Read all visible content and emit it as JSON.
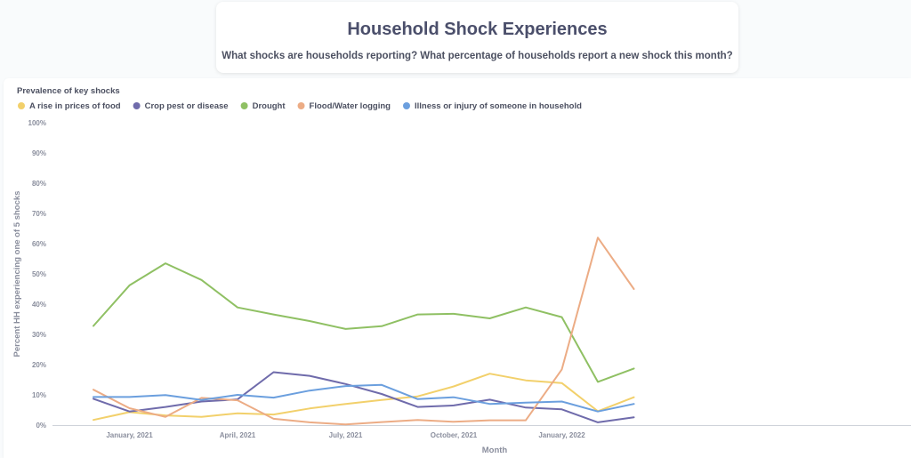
{
  "header": {
    "title": "Household Shock Experiences",
    "subtitle": "What shocks are households reporting? What percentage of households report a new shock this month?"
  },
  "chart_data": {
    "type": "line",
    "title": "Prevalence of key shocks",
    "xlabel": "Month",
    "ylabel": "Percent HH experiencing one of 5 shocks",
    "ylim": [
      0,
      100
    ],
    "y_ticks": [
      "0%",
      "10%",
      "20%",
      "30%",
      "40%",
      "50%",
      "60%",
      "70%",
      "80%",
      "90%",
      "100%"
    ],
    "x_ticks": [
      {
        "label": "January, 2021",
        "index": 1
      },
      {
        "label": "April, 2021",
        "index": 4
      },
      {
        "label": "July, 2021",
        "index": 7
      },
      {
        "label": "October, 2021",
        "index": 10
      },
      {
        "label": "January, 2022",
        "index": 13
      }
    ],
    "x": [
      "2020-12",
      "2021-01",
      "2021-02",
      "2021-03",
      "2021-04",
      "2021-05",
      "2021-06",
      "2021-07",
      "2021-08",
      "2021-09",
      "2021-10",
      "2021-11",
      "2021-12",
      "2022-01",
      "2022-02",
      "2022-03"
    ],
    "legend_position": "top-left",
    "grid": false,
    "series": [
      {
        "name": "A rise in prices of food",
        "color": "#f2d06b",
        "values": [
          1.7,
          4.3,
          3.2,
          2.7,
          3.9,
          3.5,
          5.5,
          7.0,
          8.3,
          9.5,
          12.8,
          17.0,
          14.8,
          13.9,
          4.6,
          9.2
        ]
      },
      {
        "name": "Crop pest or disease",
        "color": "#6f6bab",
        "values": [
          8.7,
          4.5,
          6.0,
          7.8,
          8.5,
          17.5,
          16.3,
          13.6,
          10.3,
          6.0,
          6.5,
          8.4,
          5.8,
          5.2,
          0.9,
          2.6
        ]
      },
      {
        "name": "Drought",
        "color": "#8fc063",
        "values": [
          32.8,
          46.2,
          53.5,
          48.0,
          38.9,
          36.6,
          34.4,
          31.8,
          32.7,
          36.6,
          36.8,
          35.3,
          38.9,
          35.7,
          14.3,
          18.7
        ]
      },
      {
        "name": "Flood/Water logging",
        "color": "#ecac85",
        "values": [
          11.7,
          5.6,
          2.7,
          9.0,
          8.2,
          2.1,
          0.9,
          0.2,
          1.0,
          1.7,
          1.1,
          1.6,
          1.6,
          18.4,
          62.0,
          45.0
        ]
      },
      {
        "name": "Illness or injury of someone in household",
        "color": "#6b9fde",
        "values": [
          9.3,
          9.3,
          9.9,
          8.3,
          10.0,
          9.1,
          11.4,
          12.9,
          13.3,
          8.6,
          9.2,
          7.0,
          7.4,
          7.8,
          4.5,
          7.0
        ]
      }
    ]
  }
}
